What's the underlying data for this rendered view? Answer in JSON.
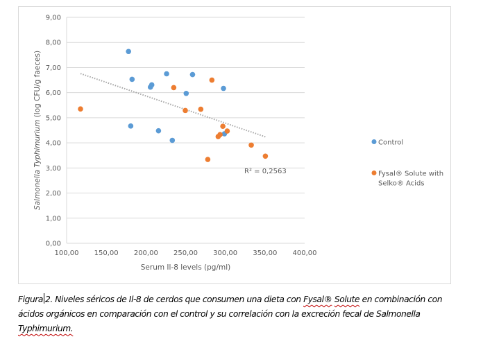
{
  "chart_data": {
    "type": "scatter",
    "title": "",
    "xlabel": "Serum Il-8 levels (pg/ml)",
    "ylabel_italic": "Salmonella Typhimurium",
    "ylabel_rest": " (log CFU/g faeces)",
    "xlim": [
      100,
      400
    ],
    "ylim": [
      0,
      9
    ],
    "x_ticks": [
      "100,00",
      "150,00",
      "200,00",
      "250,00",
      "300,00",
      "350,00",
      "400,00"
    ],
    "x_tick_values": [
      100,
      150,
      200,
      250,
      300,
      350,
      400
    ],
    "y_ticks": [
      "0,00",
      "1,00",
      "2,00",
      "3,00",
      "4,00",
      "5,00",
      "6,00",
      "7,00",
      "8,00",
      "9,00"
    ],
    "y_tick_values": [
      0,
      1,
      2,
      3,
      4,
      5,
      6,
      7,
      8,
      9
    ],
    "grid": "horizontal",
    "legend_position": "right",
    "series": [
      {
        "name": "Control",
        "color": "#5b9bd5",
        "points": [
          [
            178.0,
            7.64
          ],
          [
            180.8,
            4.67
          ],
          [
            182.5,
            6.53
          ],
          [
            205.6,
            6.22
          ],
          [
            207.3,
            6.31
          ],
          [
            215.8,
            4.48
          ],
          [
            226.0,
            6.75
          ],
          [
            233.2,
            4.1
          ],
          [
            250.7,
            5.97
          ],
          [
            258.7,
            6.72
          ],
          [
            297.7,
            6.17
          ],
          [
            298.9,
            4.36
          ]
        ]
      },
      {
        "name": "Fysal® Solute with Selko® Acids",
        "legend_lines": [
          "Fysal® Solute with",
          "Selko® Acids"
        ],
        "color": "#ed7d31",
        "points": [
          [
            117.5,
            5.35
          ],
          [
            235.0,
            6.2
          ],
          [
            249.6,
            5.29
          ],
          [
            269.1,
            5.34
          ],
          [
            283.1,
            6.5
          ],
          [
            277.9,
            3.34
          ],
          [
            291.0,
            4.25
          ],
          [
            293.4,
            4.33
          ],
          [
            296.9,
            4.66
          ],
          [
            302.4,
            4.47
          ],
          [
            332.7,
            3.91
          ],
          [
            350.5,
            3.47
          ]
        ]
      }
    ],
    "trendline": {
      "type": "linear",
      "color": "#a6a6a6",
      "x_range": [
        117.5,
        350.5
      ],
      "y_start": 6.76,
      "y_end": 4.24,
      "label": "R² = 0,2563"
    }
  },
  "caption": {
    "prefix": "Figura",
    "text_1": "2. Niveles séricos de Il-8 de cerdos que consumen una dieta con ",
    "fysal": "Fysal®",
    "space": " ",
    "solute": "Solute",
    "text_2": " en combinación con ácidos orgánicos en comparación con el control y su correlación con la excreción fecal de Salmonella ",
    "typhimurium": "Typhimurium."
  }
}
